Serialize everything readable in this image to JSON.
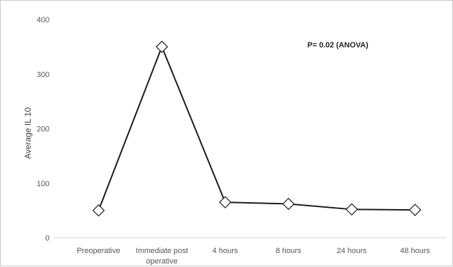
{
  "chart_data": {
    "type": "line",
    "title": "",
    "xlabel": "",
    "ylabel": "Average IL 10",
    "categories": [
      "Preoperative",
      "Immediate post operative",
      "4 hours",
      "8 hours",
      "24 hours",
      "48 hours"
    ],
    "series": [
      {
        "values": [
          50,
          350,
          65,
          62,
          52,
          51
        ]
      }
    ],
    "ylim": [
      0,
      400
    ],
    "yticks": [
      0,
      100,
      200,
      300,
      400
    ],
    "grid": false,
    "marker": "diamond",
    "annotation": "P= 0.02 (ANOVA)",
    "colors": {
      "line": "#1a1a1a",
      "marker_stroke": "#2a2a2a",
      "marker_fill": "#ffffff"
    }
  }
}
